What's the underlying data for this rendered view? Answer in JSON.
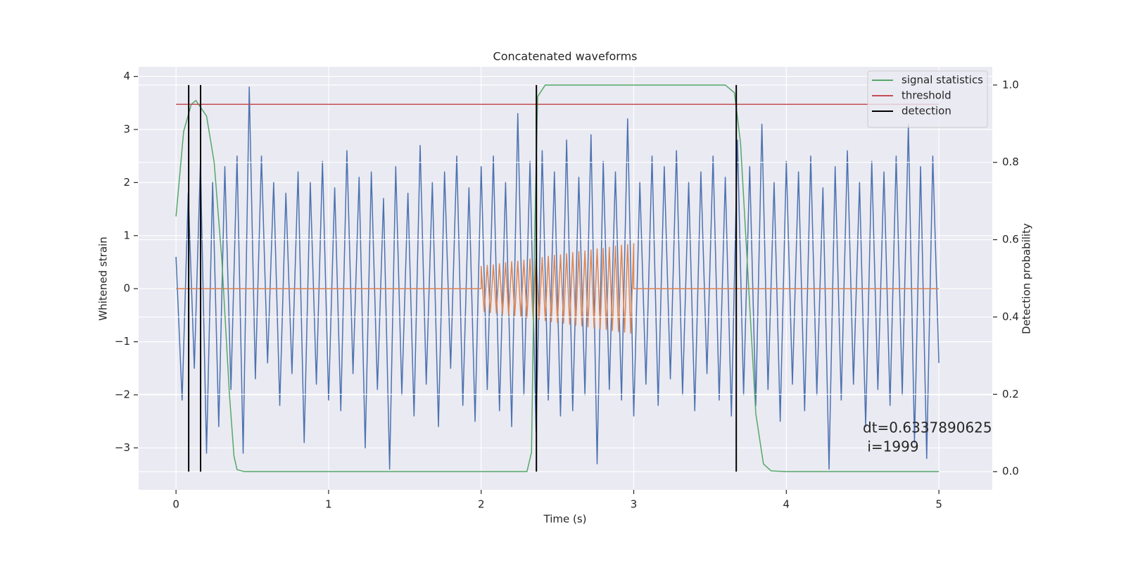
{
  "chart_data": {
    "type": "line",
    "title": "Concatenated waveforms",
    "x_label": "Time (s)",
    "y_label": "Whitened strain",
    "y2_label": "Detection probability",
    "xlim": [
      -0.245,
      5.35
    ],
    "ylim": [
      -3.79,
      4.18
    ],
    "y2lim": [
      -0.047,
      1.047
    ],
    "xticks": [
      0,
      1,
      2,
      3,
      4,
      5
    ],
    "yticks": [
      {
        "value": -3,
        "label": "−3"
      },
      {
        "value": -2,
        "label": "−2"
      },
      {
        "value": -1,
        "label": "−1"
      },
      0,
      1,
      2,
      3,
      4
    ],
    "y2ticks": [
      {
        "value": 0,
        "label": "0.0"
      },
      0.2,
      0.4,
      0.6,
      0.8,
      {
        "value": 1,
        "label": "1.0"
      }
    ],
    "grid": true,
    "legend": "upper right",
    "background": "#eaeaf2",
    "annotation": [
      "dt=0.6337890625",
      " i=1999"
    ],
    "series": [
      {
        "color": "#4c72b0",
        "axis": "y",
        "x": [
          0,
          0.04,
          0.08,
          0.12,
          0.16,
          0.2,
          0.24,
          0.28,
          0.32,
          0.36,
          0.4,
          0.44,
          0.48,
          0.52,
          0.56,
          0.6,
          0.64,
          0.68,
          0.72,
          0.76,
          0.8,
          0.84,
          0.88,
          0.92,
          0.96,
          1,
          1.04,
          1.08,
          1.12,
          1.16,
          1.2,
          1.24,
          1.28,
          1.32,
          1.36,
          1.4,
          1.44,
          1.48,
          1.52,
          1.56,
          1.6,
          1.64,
          1.68,
          1.72,
          1.76,
          1.8,
          1.84,
          1.88,
          1.92,
          1.96,
          2,
          2.04,
          2.08,
          2.12,
          2.16,
          2.2,
          2.24,
          2.28,
          2.32,
          2.36,
          2.4,
          2.44,
          2.48,
          2.52,
          2.56,
          2.6,
          2.64,
          2.68,
          2.72,
          2.76,
          2.8,
          2.84,
          2.88,
          2.92,
          2.96,
          3,
          3.04,
          3.08,
          3.12,
          3.16,
          3.2,
          3.24,
          3.28,
          3.32,
          3.36,
          3.4,
          3.44,
          3.48,
          3.52,
          3.56,
          3.6,
          3.64,
          3.68,
          3.72,
          3.76,
          3.8,
          3.84,
          3.88,
          3.92,
          3.96,
          4,
          4.04,
          4.08,
          4.12,
          4.16,
          4.2,
          4.24,
          4.28,
          4.32,
          4.36,
          4.4,
          4.44,
          4.48,
          4.52,
          4.56,
          4.6,
          4.64,
          4.68,
          4.72,
          4.76,
          4.8,
          4.84,
          4.88,
          4.92,
          4.96,
          5
        ],
        "values": [
          0.6,
          -2.1,
          1.8,
          -1.5,
          2.4,
          -3.1,
          2.0,
          -2.6,
          2.3,
          -1.9,
          2.5,
          -3.1,
          3.8,
          -1.7,
          2.5,
          -1.4,
          2.0,
          -2.2,
          1.8,
          -1.6,
          2.2,
          -2.9,
          2.0,
          -1.8,
          2.4,
          -2.1,
          1.9,
          -2.3,
          2.6,
          -1.6,
          2.1,
          -3.0,
          2.2,
          -1.9,
          1.7,
          -3.4,
          2.3,
          -2.0,
          1.8,
          -2.4,
          2.7,
          -1.8,
          2.0,
          -2.6,
          2.2,
          -1.5,
          2.5,
          -2.2,
          1.9,
          -2.5,
          2.3,
          -1.9,
          2.5,
          -2.3,
          2.0,
          -2.6,
          3.3,
          -2.0,
          2.4,
          -2.7,
          2.6,
          -2.1,
          2.2,
          -2.4,
          2.8,
          -2.3,
          2.1,
          -2.0,
          2.9,
          -3.3,
          2.4,
          -1.9,
          2.2,
          -2.1,
          3.2,
          -2.4,
          2.0,
          -1.8,
          2.5,
          -2.2,
          2.3,
          -1.7,
          2.6,
          -2.0,
          2.0,
          -2.3,
          2.2,
          -1.6,
          2.5,
          -2.1,
          2.1,
          -2.4,
          2.8,
          -2.0,
          2.3,
          -2.2,
          3.1,
          -1.9,
          2.0,
          -2.5,
          2.4,
          -1.8,
          2.2,
          -2.3,
          2.5,
          -2.0,
          1.9,
          -3.4,
          2.3,
          -2.1,
          2.6,
          -1.8,
          2.0,
          -2.6,
          2.4,
          -1.9,
          2.2,
          -2.2,
          2.5,
          -2.0,
          3.1,
          -2.9,
          2.3,
          -3.2,
          2.5,
          -1.4
        ]
      },
      {
        "color": "#dd8452",
        "axis": "y",
        "x": [
          0,
          2,
          2,
          2.02,
          2.04,
          2.06,
          2.08,
          2.1,
          2.12,
          2.14,
          2.16,
          2.18,
          2.2,
          2.22,
          2.24,
          2.26,
          2.28,
          2.3,
          2.32,
          2.34,
          2.36,
          2.38,
          2.4,
          2.42,
          2.44,
          2.46,
          2.48,
          2.5,
          2.52,
          2.54,
          2.56,
          2.58,
          2.6,
          2.62,
          2.64,
          2.66,
          2.68,
          2.7,
          2.72,
          2.74,
          2.76,
          2.78,
          2.8,
          2.82,
          2.84,
          2.86,
          2.88,
          2.9,
          2.92,
          2.94,
          2.96,
          2.98,
          3,
          3,
          5
        ],
        "values": [
          0,
          0,
          0.42,
          -0.43,
          0.44,
          -0.45,
          0.45,
          -0.46,
          0.47,
          -0.48,
          0.49,
          -0.5,
          0.51,
          -0.51,
          0.52,
          -0.53,
          0.54,
          -0.55,
          0.56,
          -0.57,
          0.57,
          -0.58,
          0.59,
          -0.6,
          0.61,
          -0.62,
          0.63,
          -0.64,
          0.64,
          -0.65,
          0.66,
          -0.67,
          0.68,
          -0.69,
          0.7,
          -0.7,
          0.71,
          -0.72,
          0.73,
          -0.74,
          0.75,
          -0.76,
          0.76,
          -0.77,
          0.78,
          -0.79,
          0.8,
          -0.81,
          0.82,
          -0.82,
          0.83,
          -0.84,
          0.85,
          0,
          0
        ]
      },
      {
        "name": "signal statistics",
        "color": "#55a868",
        "axis": "y2",
        "x": [
          0,
          0.05,
          0.1,
          0.13,
          0.2,
          0.25,
          0.3,
          0.35,
          0.38,
          0.4,
          0.45,
          2.3,
          2.33,
          2.35,
          2.37,
          2.42,
          3.6,
          3.66,
          3.7,
          3.75,
          3.8,
          3.85,
          3.9,
          4,
          5
        ],
        "values": [
          0.66,
          0.88,
          0.95,
          0.96,
          0.92,
          0.8,
          0.55,
          0.2,
          0.04,
          0.005,
          0,
          0,
          0.05,
          0.6,
          0.97,
          1,
          1,
          0.98,
          0.85,
          0.5,
          0.15,
          0.02,
          0.002,
          0,
          0
        ]
      },
      {
        "name": "threshold",
        "color": "#c44e52",
        "axis": "y2",
        "x": [
          0,
          5
        ],
        "values": [
          0.95,
          0.95
        ]
      },
      {
        "name": "detection",
        "color": "#000000",
        "axis": "y2",
        "vlines": true,
        "x": [
          0.083,
          0.161,
          2.362,
          3.672
        ],
        "ymin": 0,
        "ymax": 1
      }
    ]
  }
}
